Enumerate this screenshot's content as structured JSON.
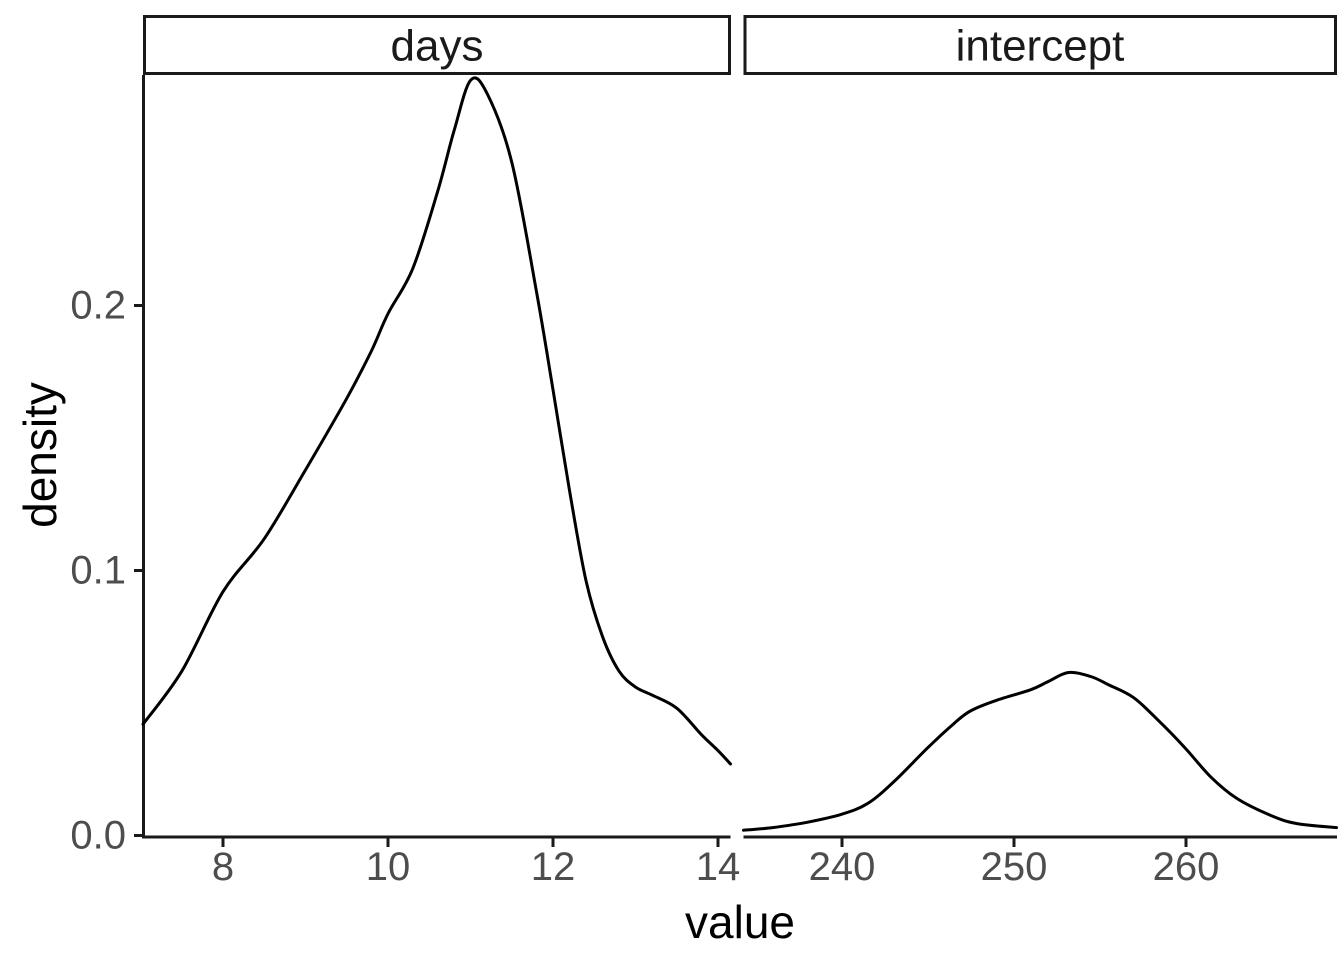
{
  "chart_data": {
    "type": "line",
    "subtype": "faceted_density",
    "title": "",
    "xlabel": "value",
    "ylabel": "density",
    "legend_position": "none",
    "grid": false,
    "panel_background": "#ffffff",
    "colors": {
      "line": "#000000",
      "axis": "#1a1a1a",
      "tick_label": "#4d4d4d",
      "strip_background": "#ffffff",
      "strip_border": "#1a1a1a"
    },
    "y_range": [
      0,
      0.287
    ],
    "y_ticks": [
      {
        "value": 0.0,
        "label": "0.0"
      },
      {
        "value": 0.1,
        "label": "0.1"
      },
      {
        "value": 0.2,
        "label": "0.2"
      }
    ],
    "facets": [
      {
        "label": "days",
        "x_range": [
          7.03,
          14.15
        ],
        "x_ticks": [
          {
            "value": 8,
            "label": "8"
          },
          {
            "value": 10,
            "label": "10"
          },
          {
            "value": 12,
            "label": "12"
          },
          {
            "value": 14,
            "label": "14"
          }
        ],
        "peak": {
          "x": 11.0,
          "density": 0.285
        },
        "points": [
          [
            7.03,
            0.042
          ],
          [
            7.5,
            0.062
          ],
          [
            8.0,
            0.092
          ],
          [
            8.5,
            0.112
          ],
          [
            9.0,
            0.138
          ],
          [
            9.5,
            0.165
          ],
          [
            9.8,
            0.183
          ],
          [
            10.0,
            0.197
          ],
          [
            10.3,
            0.214
          ],
          [
            10.6,
            0.243
          ],
          [
            10.8,
            0.266
          ],
          [
            11.0,
            0.285
          ],
          [
            11.2,
            0.28
          ],
          [
            11.5,
            0.254
          ],
          [
            11.8,
            0.205
          ],
          [
            12.0,
            0.168
          ],
          [
            12.2,
            0.13
          ],
          [
            12.4,
            0.096
          ],
          [
            12.6,
            0.075
          ],
          [
            12.8,
            0.062
          ],
          [
            13.0,
            0.056
          ],
          [
            13.2,
            0.053
          ],
          [
            13.5,
            0.048
          ],
          [
            13.8,
            0.038
          ],
          [
            14.0,
            0.032
          ],
          [
            14.15,
            0.027
          ]
        ]
      },
      {
        "label": "intercept",
        "x_range": [
          234.3,
          268.8
        ],
        "x_ticks": [
          {
            "value": 240,
            "label": "240"
          },
          {
            "value": 250,
            "label": "250"
          },
          {
            "value": 260,
            "label": "260"
          }
        ],
        "peak": {
          "x": 253.2,
          "density": 0.0615
        },
        "points": [
          [
            234.3,
            0.002
          ],
          [
            236.0,
            0.003
          ],
          [
            238.0,
            0.005
          ],
          [
            240.0,
            0.008
          ],
          [
            241.5,
            0.012
          ],
          [
            243.0,
            0.02
          ],
          [
            245.0,
            0.033
          ],
          [
            246.5,
            0.042
          ],
          [
            247.5,
            0.047
          ],
          [
            249.0,
            0.051
          ],
          [
            251.0,
            0.055
          ],
          [
            252.0,
            0.058
          ],
          [
            253.2,
            0.0615
          ],
          [
            254.5,
            0.06
          ],
          [
            255.5,
            0.057
          ],
          [
            257.0,
            0.052
          ],
          [
            258.5,
            0.043
          ],
          [
            260.0,
            0.033
          ],
          [
            261.5,
            0.022
          ],
          [
            263.0,
            0.014
          ],
          [
            265.0,
            0.0075
          ],
          [
            266.5,
            0.0045
          ],
          [
            268.8,
            0.003
          ]
        ]
      }
    ]
  }
}
